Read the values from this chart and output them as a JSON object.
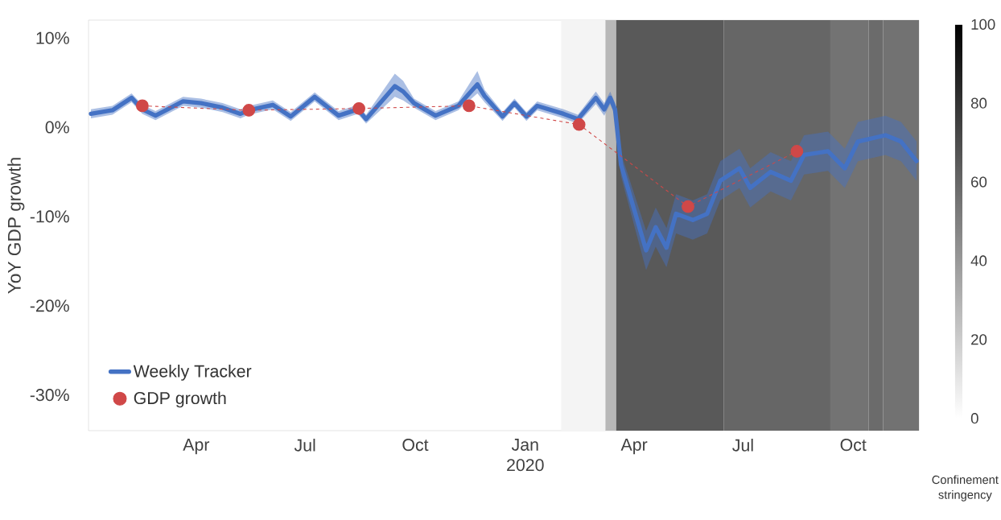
{
  "chart_data": {
    "type": "line",
    "ylabel": "YoY GDP growth",
    "clabel": "Confinement stringency",
    "xlim": [
      "2019-01-01",
      "2020-11-25"
    ],
    "ylim": [
      -34,
      12
    ],
    "xticks": [
      {
        "value": "2019-04-01",
        "label": "Apr"
      },
      {
        "value": "2019-07-01",
        "label": "Jul"
      },
      {
        "value": "2019-10-01",
        "label": "Oct"
      },
      {
        "value": "2020-01-01",
        "label": "Jan 2020"
      },
      {
        "value": "2020-04-01",
        "label": "Apr"
      },
      {
        "value": "2020-07-01",
        "label": "Jul"
      },
      {
        "value": "2020-10-01",
        "label": "Oct"
      }
    ],
    "yticks": [
      {
        "value": 10,
        "label": "10%"
      },
      {
        "value": 0,
        "label": "0%"
      },
      {
        "value": -10,
        "label": "-10%"
      },
      {
        "value": -20,
        "label": "-20%"
      },
      {
        "value": -30,
        "label": "-30%"
      }
    ],
    "clim": [
      0,
      100
    ],
    "cticks": [
      0,
      20,
      40,
      60,
      80,
      100
    ],
    "bands": [
      {
        "axis": "x",
        "from": "2020-01-31",
        "to": "2020-03-08",
        "color": "#f4f4f4"
      },
      {
        "axis": "x",
        "from": "2020-03-08",
        "to": "2020-03-17",
        "color": "#b8b8b8"
      },
      {
        "axis": "x",
        "from": "2020-03-17",
        "to": "2020-06-15",
        "color": "#595959"
      },
      {
        "axis": "x",
        "from": "2020-06-15",
        "to": "2020-09-12",
        "color": "#666666"
      },
      {
        "axis": "x",
        "from": "2020-09-12",
        "to": "2020-10-14",
        "color": "#737373"
      },
      {
        "axis": "x",
        "from": "2020-10-14",
        "to": "2020-10-26",
        "color": "#6b6b6b"
      },
      {
        "axis": "x",
        "from": "2020-10-26",
        "to": "2020-11-25",
        "color": "#727272"
      }
    ],
    "legend": "bottom left",
    "series": [
      {
        "name": "Weekly Tracker",
        "color": "#4472c4",
        "marker": "none",
        "line_style": "solid",
        "x": [
          "2019-01-03",
          "2019-01-21",
          "2019-02-06",
          "2019-02-15",
          "2019-02-26",
          "2019-03-21",
          "2019-04-05",
          "2019-04-23",
          "2019-05-08",
          "2019-05-15",
          "2019-06-04",
          "2019-06-19",
          "2019-07-09",
          "2019-07-29",
          "2019-08-14",
          "2019-08-21",
          "2019-09-14",
          "2019-09-21",
          "2019-09-30",
          "2019-10-18",
          "2019-11-06",
          "2019-11-22",
          "2019-11-28",
          "2019-12-13",
          "2019-12-23",
          "2020-01-02",
          "2020-01-11",
          "2020-02-02",
          "2020-02-14",
          "2020-02-29",
          "2020-03-07",
          "2020-03-12",
          "2020-03-16",
          "2020-03-21",
          "2020-04-11",
          "2020-04-19",
          "2020-04-28",
          "2020-05-06",
          "2020-05-20",
          "2020-06-01",
          "2020-06-12",
          "2020-06-28",
          "2020-07-07",
          "2020-07-24",
          "2020-08-10",
          "2020-08-21",
          "2020-09-10",
          "2020-09-24",
          "2020-10-05",
          "2020-10-28",
          "2020-11-10",
          "2020-11-23"
        ],
        "values": [
          1.5,
          1.9,
          3.3,
          2.0,
          1.3,
          2.9,
          2.7,
          2.2,
          1.5,
          1.9,
          2.5,
          1.2,
          3.4,
          1.3,
          2.0,
          0.9,
          4.6,
          4.0,
          2.7,
          1.3,
          2.4,
          4.8,
          3.5,
          1.2,
          2.7,
          1.2,
          2.4,
          1.5,
          0.9,
          3.3,
          2.0,
          3.3,
          2.0,
          -4.2,
          -13.8,
          -11.2,
          -13.5,
          -9.7,
          -10.4,
          -9.7,
          -6.0,
          -4.6,
          -6.8,
          -5.0,
          -6.0,
          -3.1,
          -2.7,
          -4.6,
          -1.6,
          -0.9,
          -1.6,
          -3.8
        ],
        "lower": [
          1.0,
          1.4,
          2.8,
          1.5,
          0.8,
          2.4,
          2.2,
          1.7,
          1.0,
          1.4,
          2.0,
          0.7,
          2.9,
          0.8,
          1.5,
          0.4,
          3.4,
          3.0,
          2.2,
          0.8,
          1.9,
          3.8,
          2.8,
          0.7,
          2.2,
          0.7,
          1.9,
          1.0,
          0.4,
          2.6,
          1.3,
          2.6,
          1.3,
          -5.5,
          -16.0,
          -13.4,
          -15.7,
          -11.9,
          -12.6,
          -11.9,
          -8.2,
          -6.8,
          -9.0,
          -7.2,
          -8.2,
          -5.3,
          -4.9,
          -6.8,
          -3.8,
          -3.1,
          -3.8,
          -6.0
        ],
        "upper": [
          2.0,
          2.4,
          3.8,
          2.5,
          1.8,
          3.4,
          3.2,
          2.7,
          2.0,
          2.4,
          3.0,
          1.7,
          3.9,
          1.8,
          2.5,
          1.4,
          6.0,
          5.2,
          3.2,
          1.8,
          2.9,
          6.3,
          4.2,
          1.7,
          3.2,
          1.7,
          2.9,
          2.0,
          1.4,
          4.0,
          2.7,
          4.0,
          2.7,
          -2.9,
          -11.6,
          -9.0,
          -11.3,
          -7.5,
          -8.2,
          -7.5,
          -3.8,
          -2.4,
          -4.6,
          -2.8,
          -3.8,
          -0.9,
          -0.5,
          -2.4,
          0.6,
          1.3,
          0.6,
          -1.6
        ]
      },
      {
        "name": "GDP growth",
        "color": "#d04848",
        "marker": "circle",
        "line_style": "dashed",
        "x": [
          "2019-02-15",
          "2019-05-15",
          "2019-08-15",
          "2019-11-15",
          "2020-02-15",
          "2020-05-16",
          "2020-08-15"
        ],
        "values": [
          2.4,
          1.9,
          2.1,
          2.4,
          0.3,
          -8.9,
          -2.7
        ]
      }
    ]
  }
}
